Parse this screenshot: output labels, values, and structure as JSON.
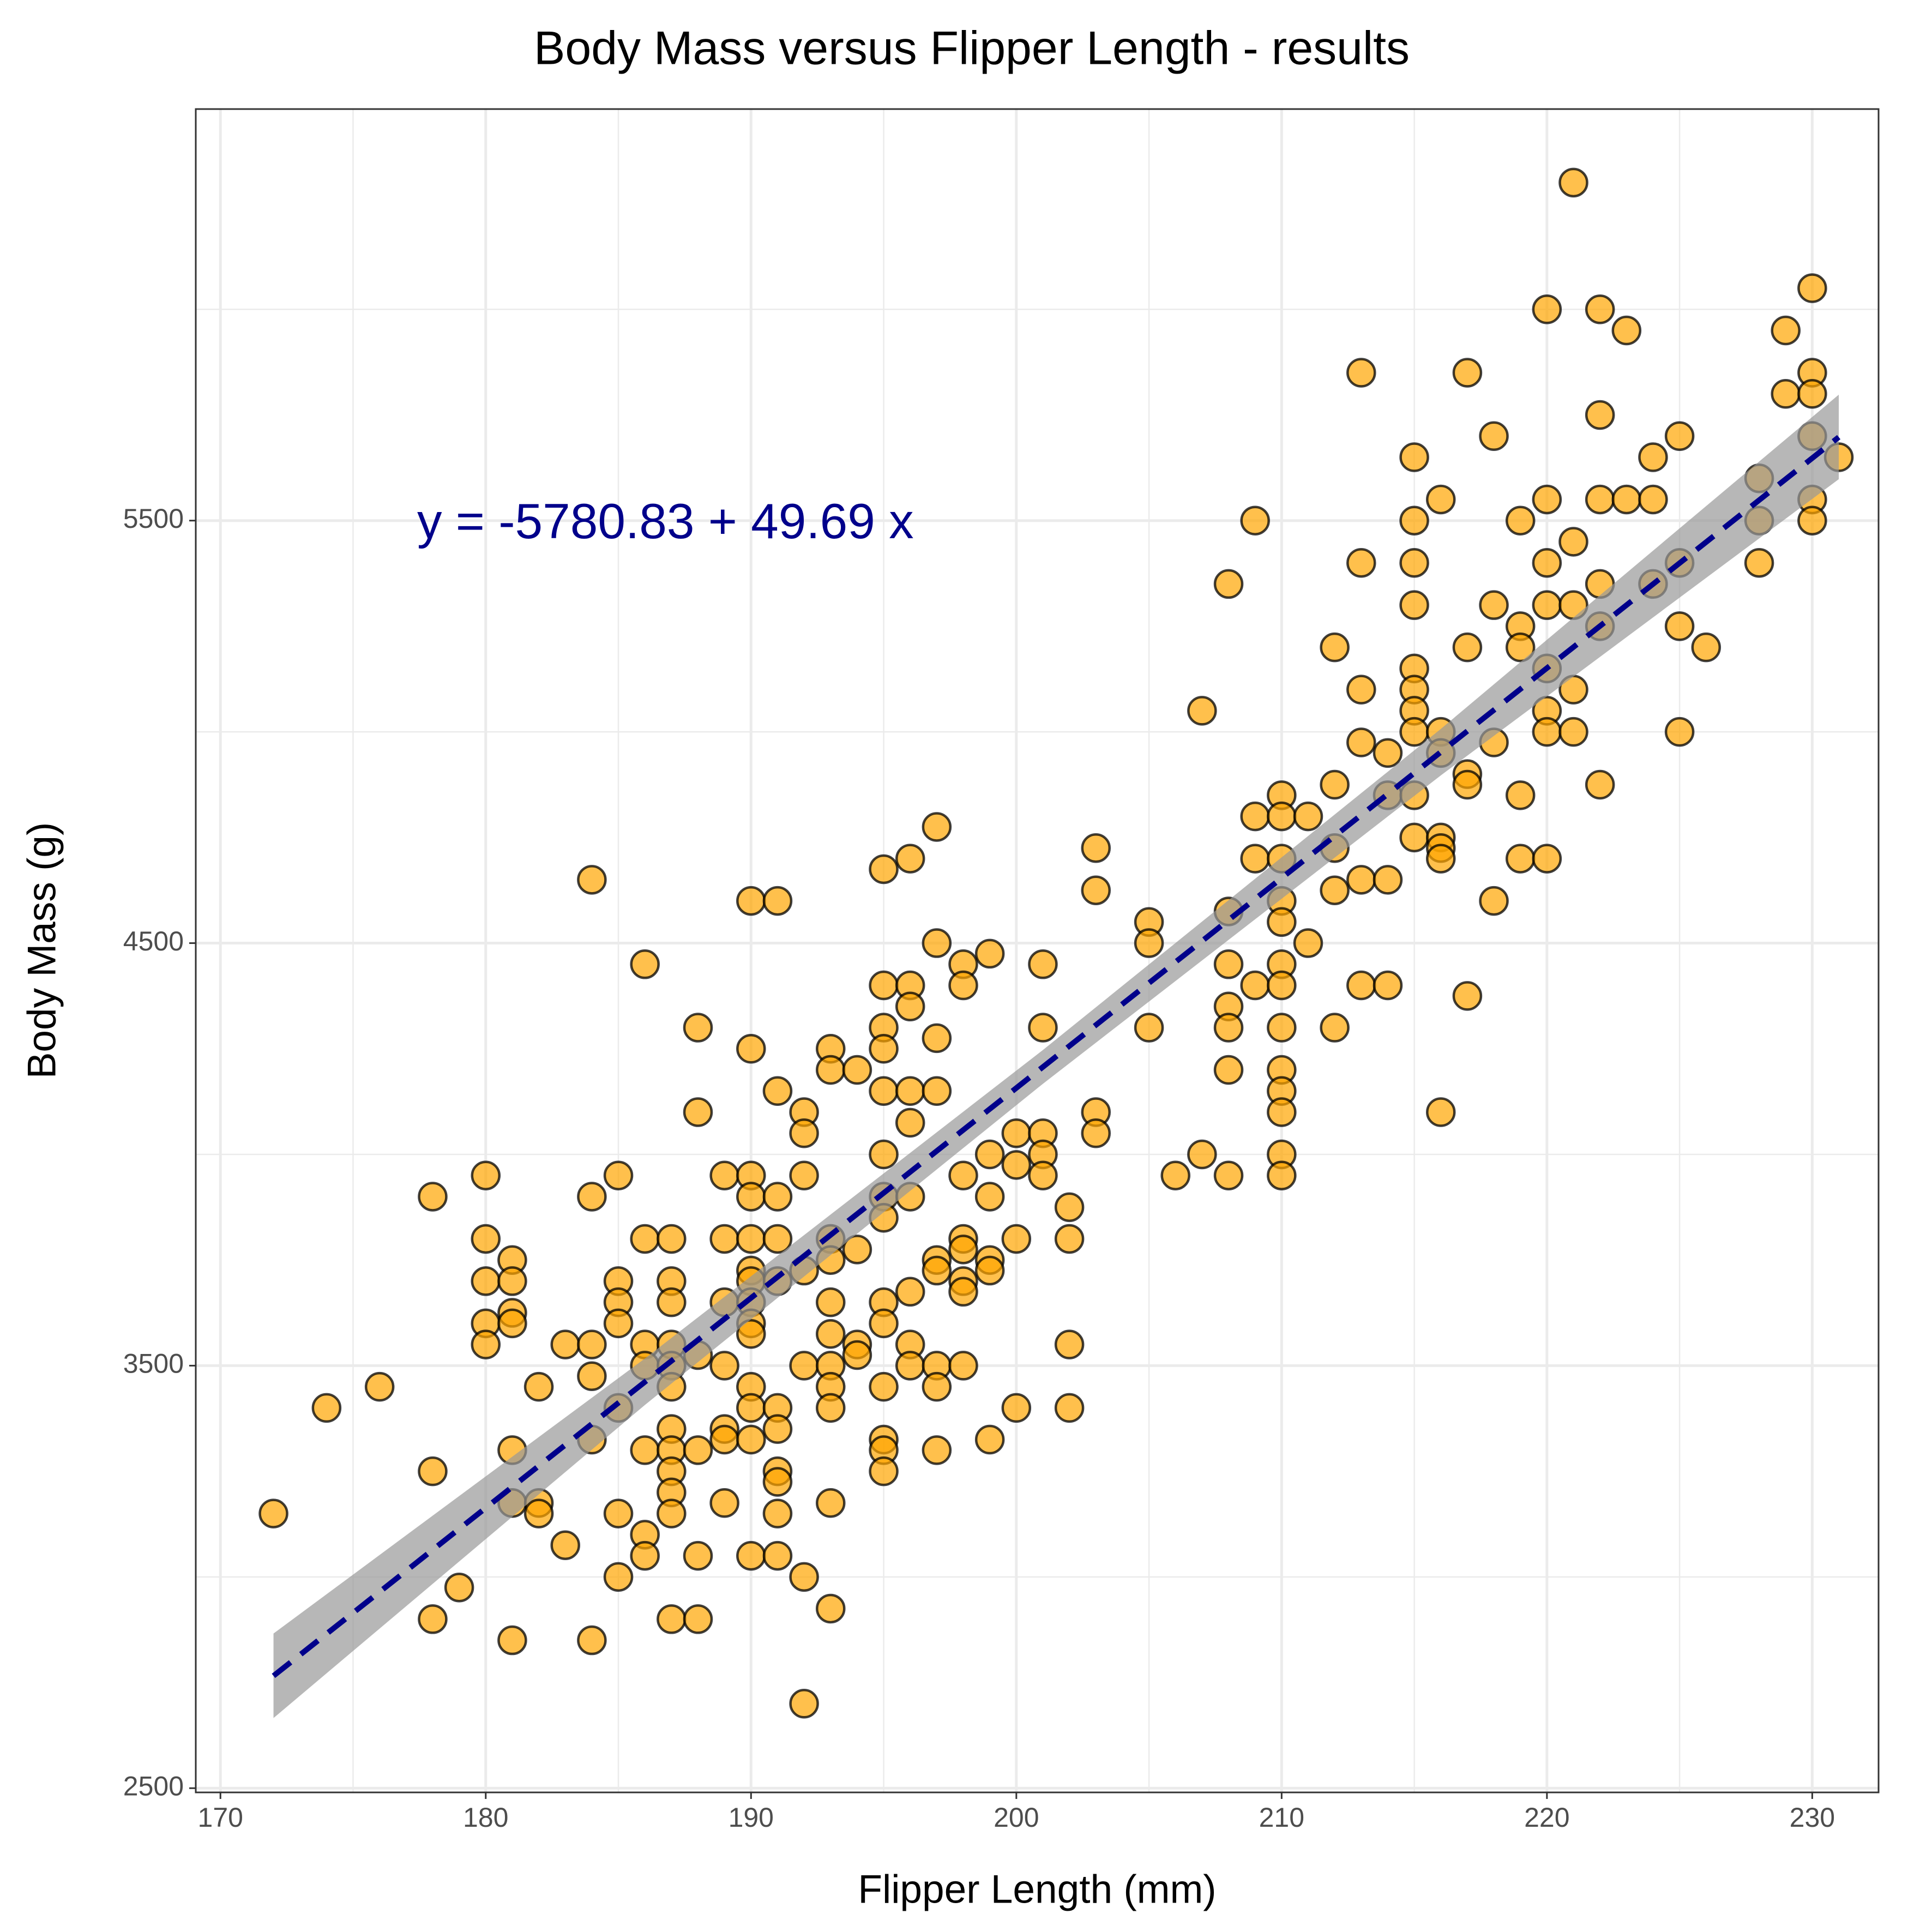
{
  "chart_data": {
    "type": "scatter",
    "title": "Body Mass versus Flipper Length - results",
    "xlabel": "Flipper Length (mm)",
    "ylabel": "Body Mass (g)",
    "annotation": "y =  -5780.83 + 49.69 x",
    "x": [
      172,
      174,
      176,
      178,
      178,
      178,
      179,
      180,
      180,
      180,
      180,
      180,
      181,
      181,
      181,
      181,
      181,
      181,
      181,
      182,
      182,
      182,
      183,
      183,
      184,
      184,
      184,
      184,
      184,
      184,
      185,
      185,
      185,
      185,
      185,
      185,
      185,
      186,
      186,
      186,
      186,
      186,
      186,
      186,
      187,
      187,
      187,
      187,
      187,
      187,
      187,
      187,
      187,
      187,
      187,
      187,
      188,
      188,
      188,
      188,
      188,
      188,
      189,
      189,
      189,
      189,
      189,
      189,
      189,
      190,
      190,
      190,
      190,
      190,
      190,
      190,
      190,
      190,
      190,
      190,
      190,
      190,
      190,
      191,
      191,
      191,
      191,
      191,
      191,
      191,
      191,
      191,
      191,
      191,
      192,
      192,
      192,
      192,
      192,
      192,
      192,
      193,
      193,
      193,
      193,
      193,
      193,
      193,
      193,
      193,
      193,
      193,
      194,
      194,
      194,
      194,
      195,
      195,
      195,
      195,
      195,
      195,
      195,
      195,
      195,
      195,
      195,
      195,
      195,
      195,
      196,
      196,
      196,
      196,
      196,
      196,
      196,
      196,
      196,
      197,
      197,
      197,
      197,
      197,
      197,
      197,
      197,
      197,
      198,
      198,
      198,
      198,
      198,
      198,
      198,
      198,
      199,
      199,
      199,
      199,
      199,
      199,
      200,
      200,
      200,
      200,
      201,
      201,
      201,
      201,
      201,
      202,
      202,
      202,
      202,
      203,
      203,
      203,
      203,
      205,
      205,
      205,
      206,
      207,
      207,
      208,
      208,
      208,
      208,
      208,
      208,
      208,
      209,
      209,
      209,
      209,
      210,
      210,
      210,
      210,
      210,
      210,
      210,
      210,
      210,
      210,
      210,
      210,
      210,
      211,
      211,
      212,
      212,
      212,
      212,
      212,
      213,
      213,
      213,
      213,
      213,
      213,
      214,
      214,
      214,
      214,
      215,
      215,
      215,
      215,
      215,
      215,
      215,
      215,
      215,
      215,
      216,
      216,
      216,
      216,
      216,
      216,
      216,
      217,
      217,
      217,
      217,
      217,
      218,
      218,
      218,
      218,
      219,
      219,
      219,
      219,
      219,
      220,
      220,
      220,
      220,
      220,
      220,
      220,
      220,
      221,
      221,
      221,
      221,
      221,
      222,
      222,
      222,
      222,
      222,
      222,
      223,
      223,
      224,
      224,
      224,
      225,
      225,
      225,
      225,
      226,
      228,
      228,
      228,
      229,
      229,
      230,
      230,
      230,
      230,
      230,
      230,
      231
    ],
    "y": [
      3150,
      3400,
      3450,
      3250,
      3900,
      2900,
      2975,
      3950,
      3800,
      3700,
      3600,
      3550,
      3750,
      3700,
      3625,
      3600,
      3300,
      3175,
      2850,
      3450,
      3175,
      3150,
      3075,
      3550,
      3900,
      3550,
      3475,
      3325,
      2850,
      4650,
      3950,
      3700,
      3650,
      3600,
      3400,
      3150,
      3000,
      4450,
      3800,
      3550,
      3500,
      3300,
      3100,
      3050,
      3800,
      3700,
      3650,
      3550,
      3500,
      3450,
      3350,
      3300,
      3250,
      3200,
      3150,
      2900,
      4300,
      4100,
      3525,
      3300,
      3050,
      2900,
      3950,
      3800,
      3650,
      3500,
      3350,
      3325,
      3175,
      4600,
      4250,
      3950,
      3900,
      3800,
      3725,
      3700,
      3650,
      3600,
      3575,
      3450,
      3400,
      3325,
      3050,
      4600,
      4150,
      3900,
      3800,
      3700,
      3400,
      3350,
      3250,
      3225,
      3150,
      3050,
      4100,
      4050,
      3950,
      3725,
      3500,
      3000,
      2700,
      4250,
      4200,
      3800,
      3750,
      3650,
      3575,
      3500,
      3450,
      3400,
      3175,
      2925,
      4200,
      3775,
      3550,
      3525,
      4675,
      4400,
      4300,
      4250,
      4150,
      4000,
      3900,
      3850,
      3650,
      3600,
      3450,
      3325,
      3300,
      3250,
      4700,
      4400,
      4350,
      4150,
      4075,
      3900,
      3675,
      3550,
      3500,
      4775,
      4500,
      4275,
      4150,
      3750,
      3725,
      3500,
      3450,
      3300,
      4450,
      4400,
      3950,
      3800,
      3775,
      3700,
      3675,
      3500,
      4475,
      4000,
      3900,
      3750,
      3725,
      3325,
      4050,
      3975,
      3800,
      3400,
      4450,
      4300,
      4050,
      4000,
      3950,
      3875,
      3800,
      3550,
      3400,
      4725,
      4625,
      4100,
      4050,
      4550,
      4500,
      4300,
      3950,
      5050,
      4000,
      5350,
      4575,
      4450,
      4350,
      4300,
      4200,
      3950,
      5500,
      4800,
      4700,
      4400,
      4850,
      4800,
      4700,
      4600,
      4550,
      4450,
      4400,
      4300,
      4200,
      4150,
      4100,
      4000,
      3950,
      4800,
      4500,
      5200,
      4875,
      4725,
      4625,
      4300,
      5850,
      5400,
      5100,
      4975,
      4650,
      4400,
      4950,
      4850,
      4650,
      4400,
      5650,
      5500,
      5400,
      5300,
      5150,
      5100,
      5050,
      5000,
      4850,
      4750,
      5550,
      5000,
      4950,
      4750,
      4725,
      4700,
      4100,
      5850,
      5200,
      4900,
      4875,
      4375,
      5700,
      5300,
      4975,
      4600,
      5500,
      5250,
      5200,
      4850,
      4700,
      6000,
      5550,
      5400,
      5300,
      5150,
      5050,
      5000,
      4700,
      6300,
      5450,
      5300,
      5100,
      5000,
      6000,
      5750,
      5550,
      5350,
      5250,
      4875,
      5950,
      5550,
      5650,
      5550,
      5350,
      5700,
      5400,
      5250,
      5000,
      5200,
      5600,
      5500,
      5400,
      5950,
      5800,
      6050,
      5850,
      5800,
      5700,
      5550,
      5500,
      5650
    ],
    "xlim": [
      169.07,
      232.5
    ],
    "ylim": [
      2490,
      6474
    ],
    "xticks": [
      170,
      180,
      190,
      200,
      210,
      220,
      230
    ],
    "yticks": [
      2500,
      3500,
      4500,
      5500
    ],
    "color": "#FFA500",
    "grid": true,
    "fit": {
      "intercept": -5780.83,
      "slope": 49.69,
      "x": [
        172,
        231
      ],
      "color": "#00008B"
    },
    "band": {
      "x": [
        172,
        186,
        201,
        216,
        231
      ],
      "lower": [
        2666,
        3407,
        4167,
        4897,
        5598
      ],
      "upper": [
        2866,
        3517,
        4247,
        5007,
        5798
      ]
    }
  }
}
